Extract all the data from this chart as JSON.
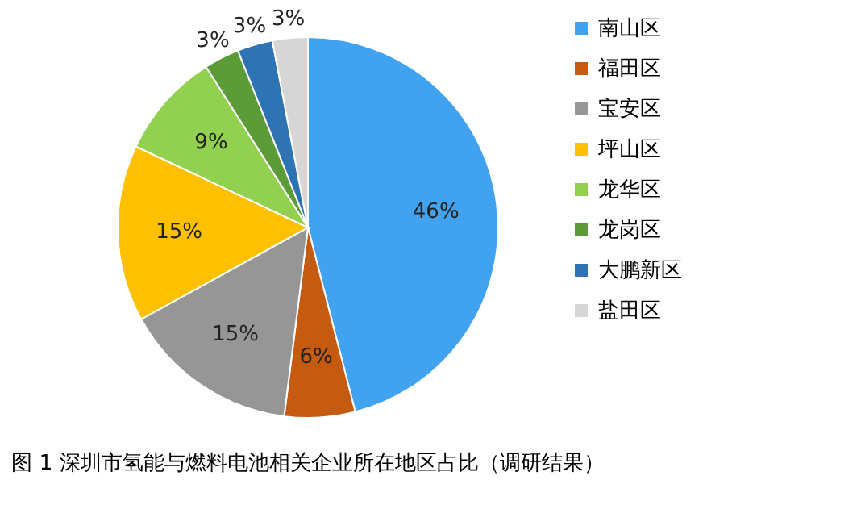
{
  "chart_data": {
    "type": "pie",
    "categories": [
      "南山区",
      "福田区",
      "宝安区",
      "坪山区",
      "龙华区",
      "龙岗区",
      "大鹏新区",
      "盐田区"
    ],
    "values": [
      46,
      6,
      15,
      15,
      9,
      3,
      3,
      3
    ],
    "colors": [
      "#41a3f0",
      "#c55a11",
      "#969696",
      "#ffc000",
      "#92d050",
      "#5b9b38",
      "#2e74b5",
      "#d6d6d6"
    ],
    "value_labels": [
      "46%",
      "6%",
      "15%",
      "15%",
      "9%",
      "3%",
      "3%",
      "3%"
    ],
    "legend": "right",
    "annotations": [
      "图 1  深圳市氢能与燃料电池相关企业所在地区占比（调研结果）"
    ]
  }
}
